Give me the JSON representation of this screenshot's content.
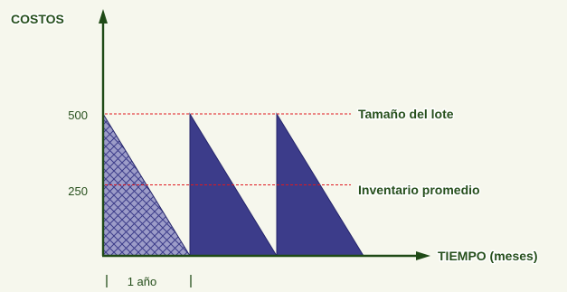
{
  "chart_data": {
    "type": "area",
    "title": "",
    "ylabel": "COSTOS",
    "xlabel": "TIEMPO (meses)",
    "y_ticks": [
      500,
      250
    ],
    "ylim": [
      0,
      500
    ],
    "x_span_label": "1 año",
    "series": [
      {
        "segments": [
          {
            "start": 0,
            "end": 1,
            "from": 500,
            "to": 0,
            "fill": "crosshatch"
          },
          {
            "start": 1,
            "end": 2,
            "from": 500,
            "to": 0,
            "fill": "solid"
          },
          {
            "start": 2,
            "end": 3,
            "from": 500,
            "to": 0,
            "fill": "solid"
          }
        ]
      }
    ],
    "reference_lines": [
      {
        "y": 500,
        "label": "Tamaño del lote"
      },
      {
        "y": 250,
        "label": "Inventario promedio"
      }
    ],
    "colors": {
      "axis": "#1f4a16",
      "fill": "#3c3c8a",
      "edge": "#25256b",
      "hatch_bg": "#9c9cc8",
      "reference": "#e0181f",
      "text": "#264f1c"
    }
  }
}
